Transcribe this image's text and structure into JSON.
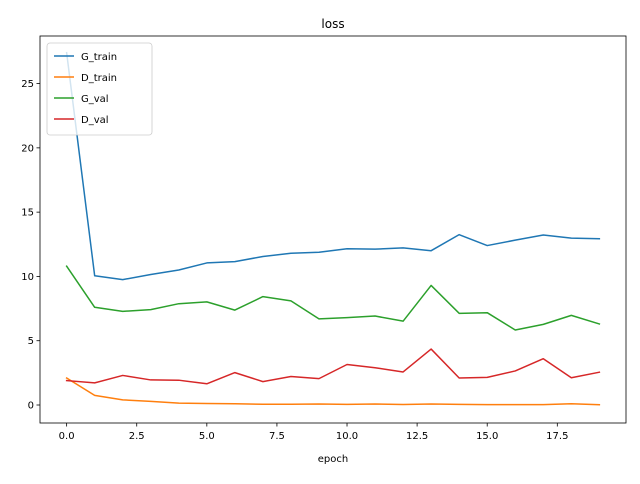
{
  "chart_data": {
    "type": "line",
    "title": "loss",
    "xlabel": "epoch",
    "ylabel": "",
    "xlim": [
      -0.95,
      19.95
    ],
    "ylim": [
      -1.4,
      28.7
    ],
    "xticks": [
      0.0,
      2.5,
      5.0,
      7.5,
      10.0,
      12.5,
      15.0,
      17.5
    ],
    "xtick_labels": [
      "0.0",
      "2.5",
      "5.0",
      "7.5",
      "10.0",
      "12.5",
      "15.0",
      "17.5"
    ],
    "yticks": [
      0,
      5,
      10,
      15,
      20,
      25
    ],
    "ytick_labels": [
      "0",
      "5",
      "10",
      "15",
      "20",
      "25"
    ],
    "grid": false,
    "legend_position": "upper-left",
    "x": [
      0,
      1,
      2,
      3,
      4,
      5,
      6,
      7,
      8,
      9,
      10,
      11,
      12,
      13,
      14,
      15,
      16,
      17,
      18,
      19
    ],
    "series": [
      {
        "name": "G_train",
        "color": "#1f77b4",
        "values": [
          27.4,
          10.05,
          9.75,
          10.15,
          10.5,
          11.05,
          11.15,
          11.55,
          11.8,
          11.88,
          12.15,
          12.12,
          12.22,
          12.0,
          13.25,
          12.4,
          12.82,
          13.22,
          12.98,
          12.93
        ]
      },
      {
        "name": "D_train",
        "color": "#ff7f0e",
        "values": [
          2.1,
          0.75,
          0.4,
          0.28,
          0.15,
          0.12,
          0.1,
          0.06,
          0.06,
          0.08,
          0.05,
          0.08,
          0.04,
          0.08,
          0.05,
          0.03,
          0.03,
          0.03,
          0.1,
          0.02
        ]
      },
      {
        "name": "G_val",
        "color": "#2ca02c",
        "values": [
          10.8,
          7.6,
          7.28,
          7.42,
          7.88,
          8.02,
          7.38,
          8.43,
          8.1,
          6.7,
          6.8,
          6.92,
          6.52,
          9.3,
          7.13,
          7.18,
          5.83,
          6.27,
          6.97,
          6.3
        ]
      },
      {
        "name": "D_val",
        "color": "#d62728",
        "values": [
          1.9,
          1.72,
          2.3,
          1.95,
          1.93,
          1.65,
          2.52,
          1.82,
          2.22,
          2.05,
          3.15,
          2.9,
          2.57,
          4.35,
          2.1,
          2.15,
          2.65,
          3.6,
          2.12,
          2.55
        ]
      }
    ]
  }
}
